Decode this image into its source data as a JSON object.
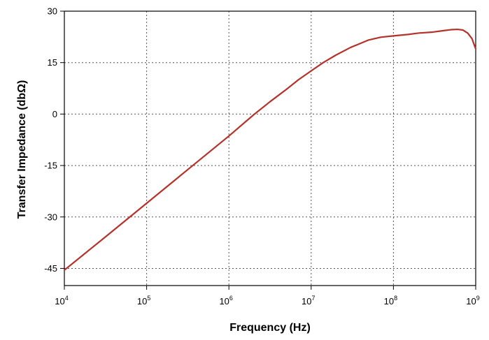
{
  "chart_data": {
    "type": "line",
    "title": "",
    "xlabel": "Frequency (Hz)",
    "ylabel": "Transfer Impedance (dbΩ)",
    "x_scale": "log",
    "xlim": [
      10000,
      1000000000
    ],
    "ylim": [
      -50,
      30
    ],
    "grid": true,
    "legend": "none",
    "x_ticks": [
      {
        "value": 10000,
        "base": "10",
        "exp": "4"
      },
      {
        "value": 100000,
        "base": "10",
        "exp": "5"
      },
      {
        "value": 1000000,
        "base": "10",
        "exp": "6"
      },
      {
        "value": 10000000,
        "base": "10",
        "exp": "7"
      },
      {
        "value": 100000000,
        "base": "10",
        "exp": "8"
      },
      {
        "value": 1000000000,
        "base": "10",
        "exp": "9"
      }
    ],
    "y_ticks": [
      30,
      15,
      0,
      -15,
      -30,
      -45
    ],
    "series": [
      {
        "color": "#b5322b",
        "x": [
          10000,
          31600,
          100000,
          316000,
          1000000,
          2000000,
          3160000,
          5000000,
          7000000,
          10000000,
          14000000,
          20000000,
          30000000,
          50000000,
          70000000,
          100000000,
          150000000,
          200000000,
          300000000,
          400000000,
          500000000,
          600000000,
          700000000,
          800000000,
          900000000,
          1000000000
        ],
        "y": [
          -45.5,
          -35.8,
          -26,
          -16.2,
          -6.4,
          -0.2,
          3.6,
          7.2,
          10.0,
          12.6,
          15.0,
          17.2,
          19.4,
          21.6,
          22.4,
          22.8,
          23.2,
          23.6,
          23.9,
          24.3,
          24.6,
          24.7,
          24.5,
          23.6,
          22.0,
          19.0
        ]
      }
    ]
  }
}
